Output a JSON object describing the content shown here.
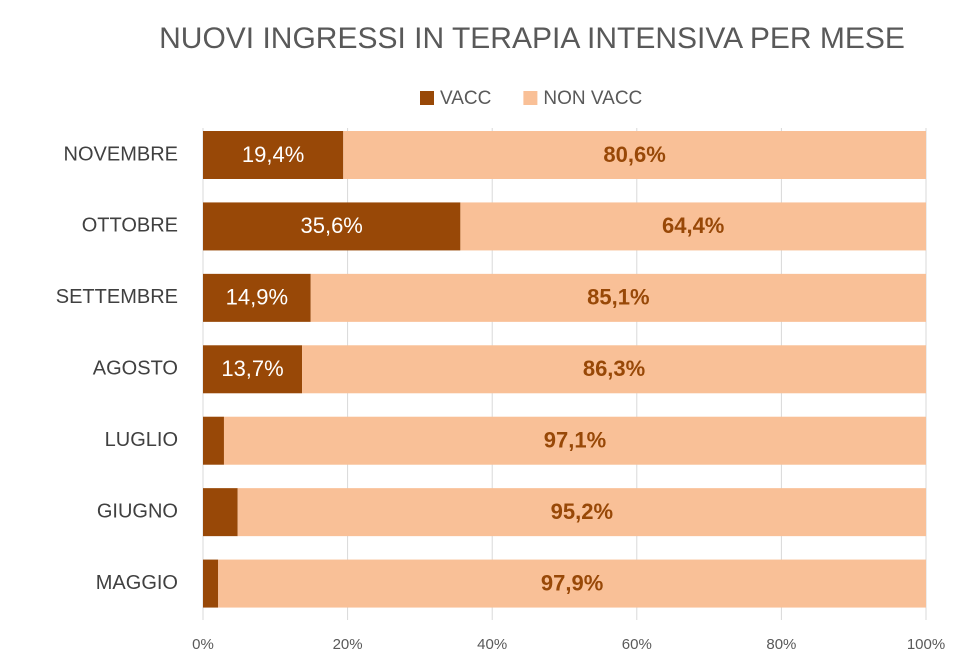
{
  "chart_data": {
    "type": "stacked-barh",
    "title": "NUOVI INGRESSI IN TERAPIA INTENSIVA PER MESE",
    "categories": [
      "NOVEMBRE",
      "OTTOBRE",
      "SETTEMBRE",
      "AGOSTO",
      "LUGLIO",
      "GIUGNO",
      "MAGGIO"
    ],
    "series": [
      {
        "name": "VACC",
        "color": "#984807",
        "label_color": "#ffffff",
        "values": [
          19.4,
          35.6,
          14.9,
          13.7,
          2.9,
          4.8,
          2.1
        ],
        "value_labels": [
          "19,4%",
          "35,6%",
          "14,9%",
          "13,7%",
          null,
          null,
          null
        ]
      },
      {
        "name": "NON VACC",
        "color": "#f9c097",
        "label_color": "#984807",
        "values": [
          80.6,
          64.4,
          85.1,
          86.3,
          97.1,
          95.2,
          97.9
        ],
        "value_labels": [
          "80,6%",
          "64,4%",
          "85,1%",
          "86,3%",
          "97,1%",
          "95,2%",
          "97,9%"
        ]
      }
    ],
    "xlim": [
      0,
      100
    ],
    "xticks": [
      {
        "value": 0,
        "label": "0%"
      },
      {
        "value": 20,
        "label": "20%"
      },
      {
        "value": 40,
        "label": "40%"
      },
      {
        "value": 60,
        "label": "60%"
      },
      {
        "value": 80,
        "label": "80%"
      },
      {
        "value": 100,
        "label": "100%"
      }
    ],
    "grid": true,
    "legend": "top"
  }
}
